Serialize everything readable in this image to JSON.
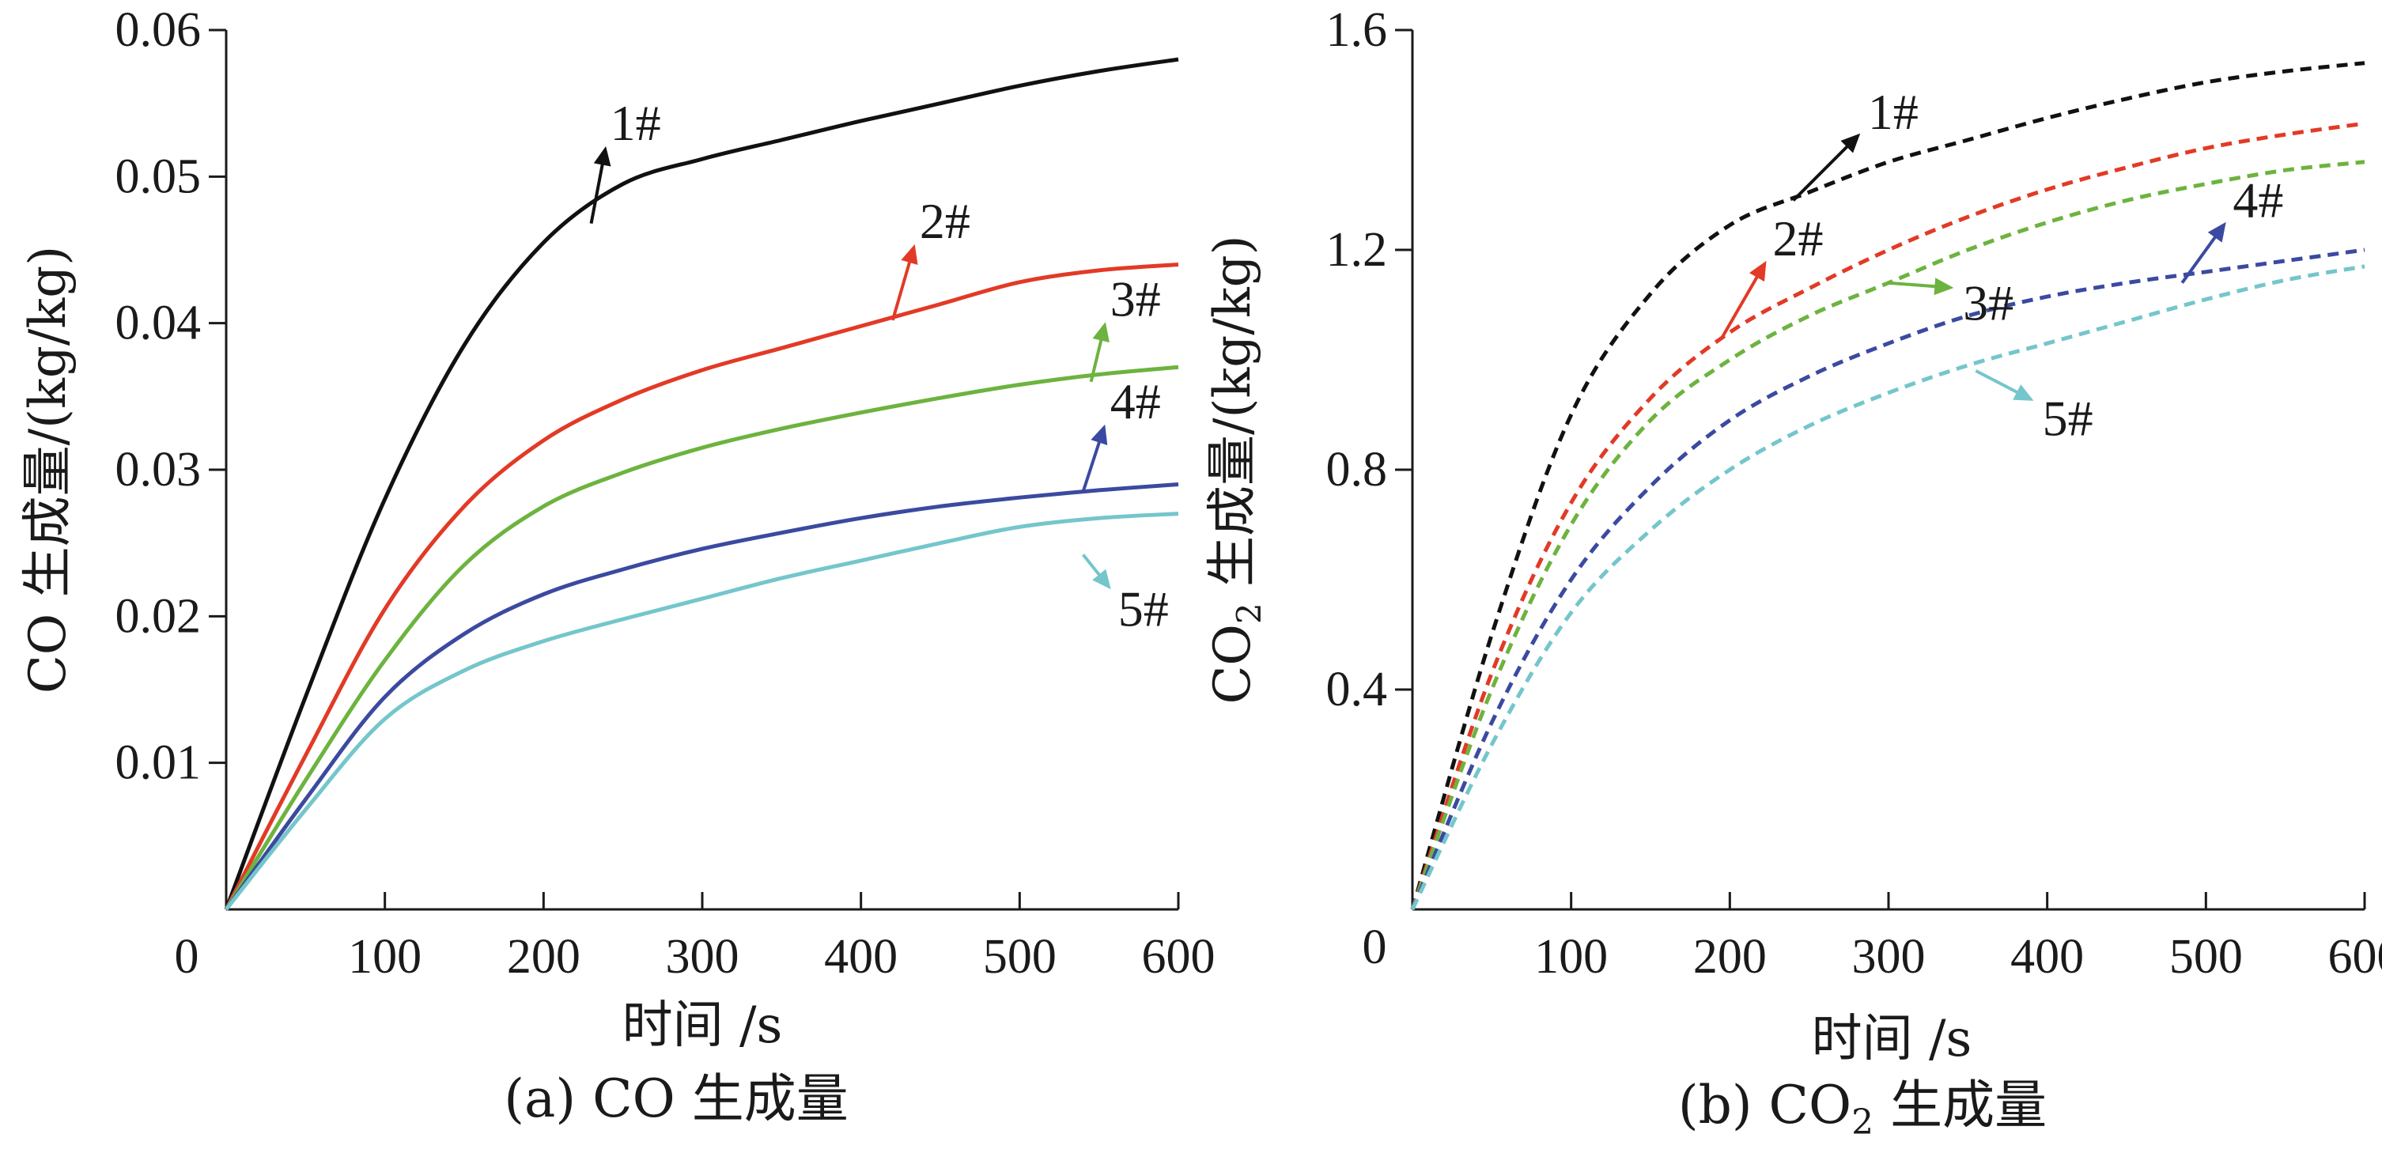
{
  "chart_data": [
    {
      "type": "line",
      "panel": "a",
      "caption": "(a) CO 生成量",
      "xlabel": "时间 /s",
      "ylabel": "CO 生成量/(kg/kg)",
      "xlim": [
        0,
        600
      ],
      "ylim": [
        0,
        0.06
      ],
      "xticks": [
        100,
        200,
        300,
        400,
        500,
        600
      ],
      "yticks": [
        0.01,
        0.02,
        0.03,
        0.04,
        0.05,
        0.06
      ],
      "xtick_labels": [
        "100",
        "200",
        "300",
        "400",
        "500",
        "600"
      ],
      "ytick_labels": [
        "0.01",
        "0.02",
        "0.03",
        "0.04",
        "0.05",
        "0.06"
      ],
      "origin_label": "0",
      "line_style": "solid",
      "grid": false,
      "x": [
        0,
        50,
        100,
        150,
        200,
        250,
        300,
        350,
        400,
        450,
        500,
        550,
        600
      ],
      "series": [
        {
          "name": "1#",
          "color": "#111111",
          "values": [
            0,
            0.0145,
            0.028,
            0.0385,
            0.0455,
            0.0495,
            0.0512,
            0.0525,
            0.0538,
            0.055,
            0.0562,
            0.0572,
            0.058
          ],
          "label_at": [
            230,
            0.0468
          ],
          "text_at": [
            240,
            0.0525
          ]
        },
        {
          "name": "2#",
          "color": "#e23a26",
          "values": [
            0,
            0.0105,
            0.0205,
            0.0275,
            0.032,
            0.0348,
            0.0368,
            0.0383,
            0.0398,
            0.0413,
            0.0428,
            0.0436,
            0.044
          ],
          "label_at": [
            420,
            0.0402
          ],
          "text_at": [
            435,
            0.0458
          ]
        },
        {
          "name": "3#",
          "color": "#6db33f",
          "values": [
            0,
            0.0088,
            0.017,
            0.0235,
            0.0275,
            0.0298,
            0.0315,
            0.0328,
            0.0339,
            0.0349,
            0.0358,
            0.0365,
            0.037
          ],
          "label_at": [
            545,
            0.036
          ],
          "text_at": [
            555,
            0.0405
          ]
        },
        {
          "name": "4#",
          "color": "#3b4aa0",
          "values": [
            0,
            0.0075,
            0.0145,
            0.0188,
            0.0215,
            0.0232,
            0.0246,
            0.0257,
            0.0267,
            0.0275,
            0.0281,
            0.0286,
            0.029
          ],
          "label_at": [
            540,
            0.0285
          ],
          "text_at": [
            555,
            0.0335
          ]
        },
        {
          "name": "5#",
          "color": "#74c6cb",
          "values": [
            0,
            0.0068,
            0.013,
            0.0163,
            0.0183,
            0.0198,
            0.0212,
            0.0226,
            0.0238,
            0.025,
            0.0261,
            0.0267,
            0.027
          ],
          "label_at": [
            540,
            0.0242
          ],
          "text_at": [
            560,
            0.0215
          ]
        }
      ]
    },
    {
      "type": "line",
      "panel": "b",
      "caption_prefix": "(b) CO",
      "caption_sub": "2",
      "caption_suffix": " 生成量",
      "xlabel": "时间 /s",
      "ylabel_prefix": "CO",
      "ylabel_sub": "2",
      "ylabel_suffix": " 生成量/(kg/kg)",
      "xlim": [
        0,
        600
      ],
      "ylim": [
        0,
        1.6
      ],
      "xticks": [
        100,
        200,
        300,
        400,
        500,
        600
      ],
      "yticks": [
        0.4,
        0.8,
        1.2,
        1.6
      ],
      "xtick_labels": [
        "100",
        "200",
        "300",
        "400",
        "500",
        "600"
      ],
      "ytick_labels": [
        "0.4",
        "0.8",
        "1.2",
        "1.6"
      ],
      "origin_label": "0",
      "line_style": "dashed",
      "grid": false,
      "x": [
        0,
        50,
        100,
        150,
        200,
        250,
        300,
        350,
        400,
        450,
        500,
        550,
        600
      ],
      "series": [
        {
          "name": "1#",
          "color": "#111111",
          "values": [
            0,
            0.5,
            0.9,
            1.12,
            1.245,
            1.305,
            1.36,
            1.4,
            1.44,
            1.475,
            1.505,
            1.525,
            1.54
          ],
          "label_at": [
            240,
            1.29
          ],
          "text_at": [
            285,
            1.42
          ]
        },
        {
          "name": "2#",
          "color": "#e23a26",
          "values": [
            0,
            0.43,
            0.74,
            0.93,
            1.05,
            1.13,
            1.2,
            1.26,
            1.31,
            1.35,
            1.385,
            1.41,
            1.43
          ],
          "label_at": [
            195,
            1.04
          ],
          "text_at": [
            225,
            1.19
          ]
        },
        {
          "name": "3#",
          "color": "#6db33f",
          "values": [
            0,
            0.4,
            0.7,
            0.89,
            1.0,
            1.08,
            1.14,
            1.2,
            1.25,
            1.29,
            1.32,
            1.345,
            1.36
          ],
          "label_at": [
            300,
            1.14
          ],
          "text_at": [
            345,
            1.13
          ]
        },
        {
          "name": "4#",
          "color": "#3b4aa0",
          "values": [
            0,
            0.34,
            0.6,
            0.77,
            0.89,
            0.97,
            1.03,
            1.08,
            1.115,
            1.14,
            1.16,
            1.18,
            1.2
          ],
          "label_at": [
            485,
            1.14
          ],
          "text_at": [
            515,
            1.26
          ]
        },
        {
          "name": "5#",
          "color": "#74c6cb",
          "values": [
            0,
            0.3,
            0.54,
            0.69,
            0.8,
            0.88,
            0.94,
            0.99,
            1.03,
            1.07,
            1.11,
            1.145,
            1.17
          ],
          "label_at": [
            355,
            0.98
          ],
          "text_at": [
            395,
            0.92
          ]
        }
      ]
    }
  ]
}
